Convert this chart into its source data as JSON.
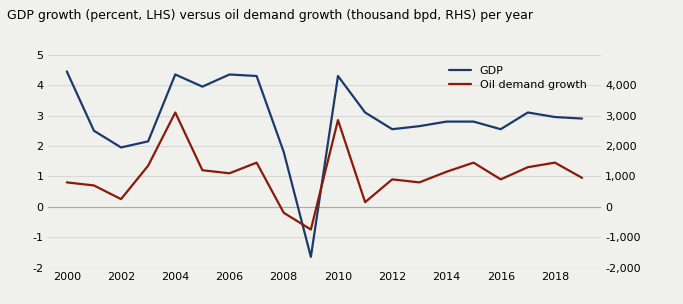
{
  "title": "GDP growth (percent, LHS) versus oil demand growth (thousand bpd, RHS) per year",
  "years": [
    2000,
    2001,
    2002,
    2003,
    2004,
    2005,
    2006,
    2007,
    2008,
    2009,
    2010,
    2011,
    2012,
    2013,
    2014,
    2015,
    2016,
    2017,
    2018,
    2019
  ],
  "gdp": [
    4.45,
    2.5,
    1.95,
    2.15,
    4.35,
    3.95,
    4.35,
    4.3,
    1.8,
    -1.65,
    4.3,
    3.1,
    2.55,
    2.65,
    2.8,
    2.8,
    2.55,
    3.1,
    2.95,
    2.9
  ],
  "oil_mbpd": [
    800,
    700,
    250,
    1350,
    3100,
    1200,
    1100,
    1450,
    -200,
    -750,
    2850,
    150,
    900,
    800,
    1150,
    1450,
    900,
    1300,
    1450,
    950
  ],
  "gdp_color": "#1b3a6b",
  "oil_color": "#8b1a0a",
  "ylim_left": [
    -2,
    5
  ],
  "ylim_right": [
    -2000,
    5000
  ],
  "yticks_left": [
    -2,
    -1,
    0,
    1,
    2,
    3,
    4,
    5
  ],
  "yticks_right": [
    -2000,
    -1000,
    0,
    1000,
    2000,
    3000,
    4000
  ],
  "xticks": [
    2000,
    2002,
    2004,
    2006,
    2008,
    2010,
    2012,
    2014,
    2016,
    2018
  ],
  "xlim": [
    1999.3,
    2019.7
  ],
  "background_color": "#f0f0ec",
  "plot_bg_color": "#f0f0ec",
  "grid_color": "#d8d8d8",
  "title_fontsize": 9,
  "tick_fontsize": 8,
  "legend_labels": [
    "GDP",
    "Oil demand growth"
  ],
  "linewidth": 1.6
}
